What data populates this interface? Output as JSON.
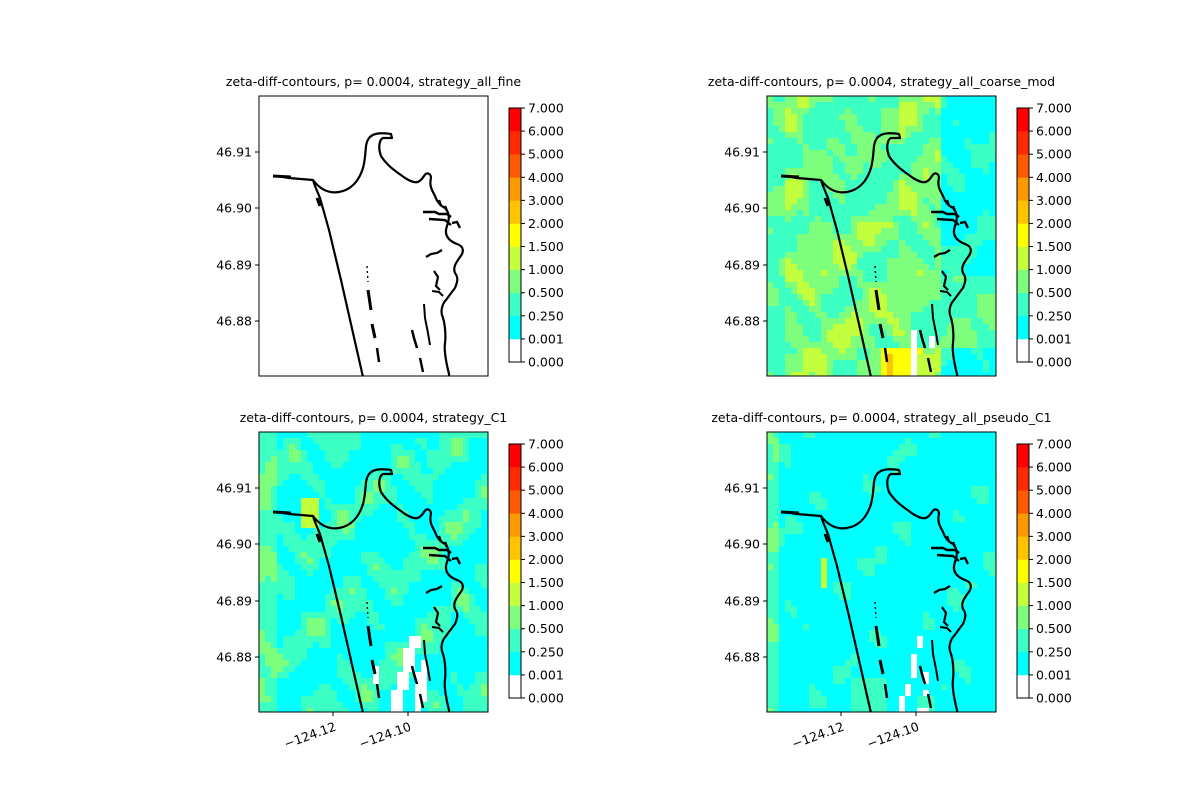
{
  "chart_data": [
    {
      "type": "heatmap",
      "title": "zeta-diff-contours, p= 0.0004, strategy_all_fine",
      "field": "none",
      "yticks": [
        "46.91",
        "46.90",
        "46.89",
        "46.88"
      ],
      "xticks": [],
      "colorbar_ticks": [
        "7.000",
        "6.000",
        "5.000",
        "4.000",
        "3.000",
        "2.000",
        "1.500",
        "1.000",
        "0.500",
        "0.250",
        "0.001",
        "0.000"
      ]
    },
    {
      "type": "heatmap",
      "title": "zeta-diff-contours, p= 0.0004, strategy_all_coarse_mod",
      "field": "coarse",
      "yticks": [
        "46.91",
        "46.90",
        "46.89",
        "46.88"
      ],
      "xticks": [],
      "colorbar_ticks": [
        "7.000",
        "6.000",
        "5.000",
        "4.000",
        "3.000",
        "2.000",
        "1.500",
        "1.000",
        "0.500",
        "0.250",
        "0.001",
        "0.000"
      ]
    },
    {
      "type": "heatmap",
      "title": "zeta-diff-contours, p= 0.0004, strategy_C1",
      "field": "c1",
      "yticks": [
        "46.91",
        "46.90",
        "46.89",
        "46.88"
      ],
      "xticks": [
        "−124.12",
        "−124.10"
      ],
      "colorbar_ticks": [
        "7.000",
        "6.000",
        "5.000",
        "4.000",
        "3.000",
        "2.000",
        "1.500",
        "1.000",
        "0.500",
        "0.250",
        "0.001",
        "0.000"
      ]
    },
    {
      "type": "heatmap",
      "title": "zeta-diff-contours, p= 0.0004, strategy_all_pseudo_C1",
      "field": "pseudo",
      "yticks": [
        "46.91",
        "46.90",
        "46.89",
        "46.88"
      ],
      "xticks": [
        "−124.12",
        "−124.10"
      ],
      "colorbar_ticks": [
        "7.000",
        "6.000",
        "5.000",
        "4.000",
        "3.000",
        "2.000",
        "1.500",
        "1.000",
        "0.500",
        "0.250",
        "0.001",
        "0.000"
      ]
    }
  ],
  "colorbar": {
    "levels": [
      0,
      0.001,
      0.25,
      0.5,
      1.0,
      1.5,
      2.0,
      3.0,
      4.0,
      5.0,
      6.0,
      7.0
    ],
    "colors": [
      "#ffffff",
      "#00ffff",
      "#3cffc3",
      "#7dff7d",
      "#c3ff3c",
      "#ffff00",
      "#ffc300",
      "#ff9900",
      "#ff5a00",
      "#ff2a00",
      "#ff0000"
    ]
  },
  "axes": {
    "ylim": [
      46.87,
      46.92
    ],
    "y_tick_values": [
      46.91,
      46.9,
      46.89,
      46.88
    ],
    "x_tick_values": [
      -124.12,
      -124.1
    ]
  }
}
